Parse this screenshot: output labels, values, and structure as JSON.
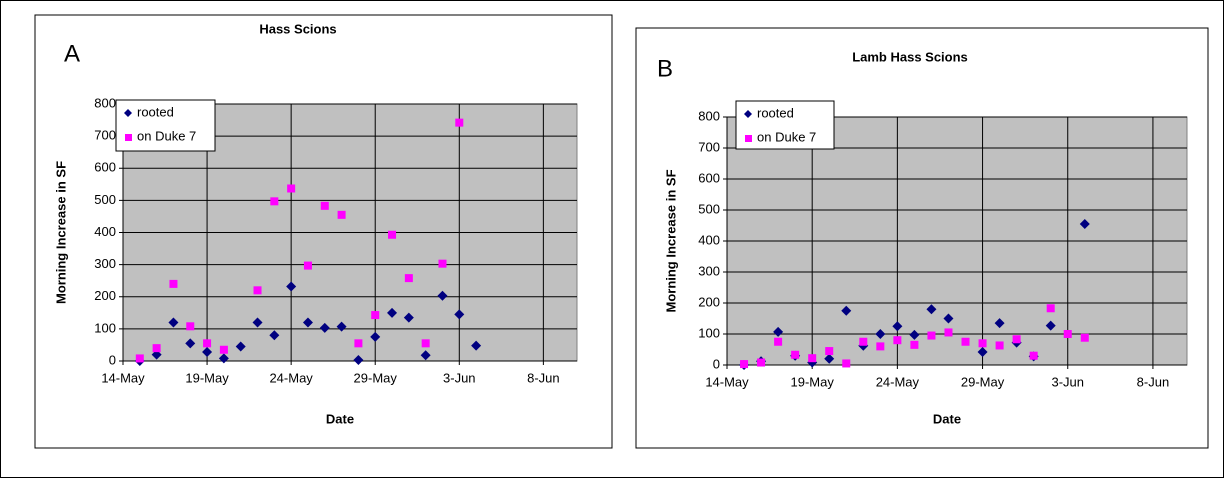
{
  "chart_data": [
    {
      "type": "scatter",
      "panel_label": "A",
      "title": "Hass Scions",
      "x_label": "Date",
      "y_label": "Morning Increase in SF",
      "xlim": [
        "14-May",
        "10-Jun"
      ],
      "xticks": [
        "14-May",
        "19-May",
        "24-May",
        "29-May",
        "3-Jun",
        "8-Jun"
      ],
      "ylim": [
        0,
        800
      ],
      "yticks": [
        0,
        100,
        200,
        300,
        400,
        500,
        600,
        700,
        800
      ],
      "grid": true,
      "legend": "upper left",
      "series": [
        {
          "name": "rooted",
          "color": "#000080",
          "marker": "diamond",
          "x": [
            "15-May",
            "16-May",
            "17-May",
            "18-May",
            "19-May",
            "20-May",
            "21-May",
            "22-May",
            "23-May",
            "24-May",
            "25-May",
            "26-May",
            "27-May",
            "28-May",
            "29-May",
            "30-May",
            "31-May",
            "1-Jun",
            "2-Jun",
            "3-Jun",
            "4-Jun"
          ],
          "values": [
            0,
            20,
            120,
            55,
            28,
            8,
            45,
            120,
            80,
            232,
            120,
            103,
            107,
            3,
            75,
            150,
            135,
            18,
            203,
            145,
            48
          ]
        },
        {
          "name": "on Duke 7",
          "color": "#ff00ff",
          "marker": "square",
          "x": [
            "15-May",
            "16-May",
            "17-May",
            "18-May",
            "19-May",
            "20-May",
            "22-May",
            "23-May",
            "24-May",
            "25-May",
            "26-May",
            "27-May",
            "28-May",
            "29-May",
            "30-May",
            "31-May",
            "1-Jun",
            "2-Jun",
            "3-Jun"
          ],
          "values": [
            8,
            40,
            240,
            108,
            55,
            35,
            220,
            497,
            537,
            297,
            483,
            455,
            55,
            143,
            393,
            258,
            55,
            303,
            742
          ]
        }
      ]
    },
    {
      "type": "scatter",
      "panel_label": "B",
      "title": "Lamb Hass Scions",
      "x_label": "Date",
      "y_label": "Morning Increase in SF",
      "xlim": [
        "14-May",
        "10-Jun"
      ],
      "xticks": [
        "14-May",
        "19-May",
        "24-May",
        "29-May",
        "3-Jun",
        "8-Jun"
      ],
      "ylim": [
        0,
        800
      ],
      "yticks": [
        0,
        100,
        200,
        300,
        400,
        500,
        600,
        700,
        800
      ],
      "grid": true,
      "legend": "upper left",
      "series": [
        {
          "name": "rooted",
          "color": "#000080",
          "marker": "diamond",
          "x": [
            "15-May",
            "16-May",
            "17-May",
            "18-May",
            "19-May",
            "20-May",
            "21-May",
            "22-May",
            "23-May",
            "24-May",
            "25-May",
            "26-May",
            "27-May",
            "29-May",
            "30-May",
            "31-May",
            "1-Jun",
            "2-Jun",
            "4-Jun"
          ],
          "values": [
            0,
            12,
            107,
            30,
            8,
            20,
            175,
            62,
            100,
            125,
            97,
            180,
            150,
            42,
            135,
            72,
            28,
            127,
            455
          ]
        },
        {
          "name": "on Duke 7",
          "color": "#ff00ff",
          "marker": "square",
          "x": [
            "15-May",
            "16-May",
            "17-May",
            "18-May",
            "19-May",
            "20-May",
            "21-May",
            "22-May",
            "23-May",
            "24-May",
            "25-May",
            "26-May",
            "27-May",
            "28-May",
            "29-May",
            "30-May",
            "31-May",
            "1-Jun",
            "2-Jun",
            "3-Jun",
            "4-Jun"
          ],
          "values": [
            3,
            8,
            75,
            33,
            22,
            45,
            5,
            75,
            60,
            80,
            65,
            95,
            105,
            75,
            70,
            63,
            83,
            30,
            183,
            100,
            88
          ]
        }
      ]
    }
  ]
}
